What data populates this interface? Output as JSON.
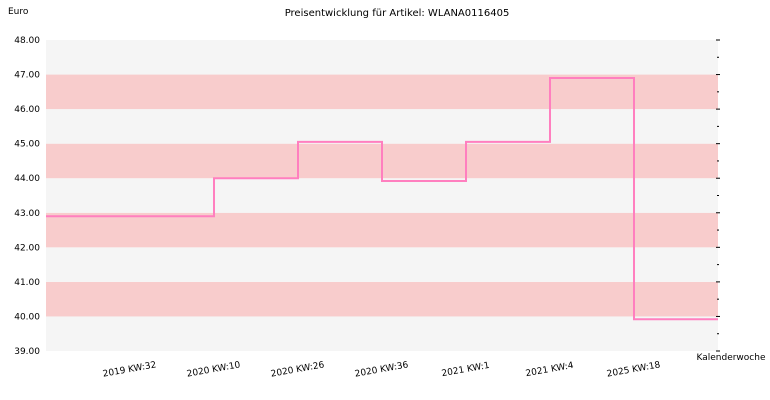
{
  "chart_data": {
    "type": "line",
    "step": true,
    "title": "Preisentwicklung für Artikel: WLANA0116405",
    "ylabel": "Euro",
    "xlabel": "Kalenderwoche",
    "ylim": [
      39.0,
      48.0
    ],
    "yticks": [
      "39.00",
      "40.00",
      "41.00",
      "42.00",
      "43.00",
      "44.00",
      "45.00",
      "46.00",
      "47.00",
      "48.00"
    ],
    "categories": [
      "2019 KW:32",
      "2020 KW:10",
      "2020 KW:26",
      "2020 KW:36",
      "2021 KW:1",
      "2021 KW:4",
      "2025 KW:18"
    ],
    "series": [
      {
        "values": [
          42.9,
          44.0,
          45.05,
          43.92,
          45.05,
          46.9,
          39.92
        ]
      }
    ],
    "grid": "alternating horizontal bands",
    "colors": {
      "line": "#ff7fbf",
      "band_pink": "#f8cccc",
      "band_grey": "#f5f5f5",
      "text": "#000000"
    }
  }
}
